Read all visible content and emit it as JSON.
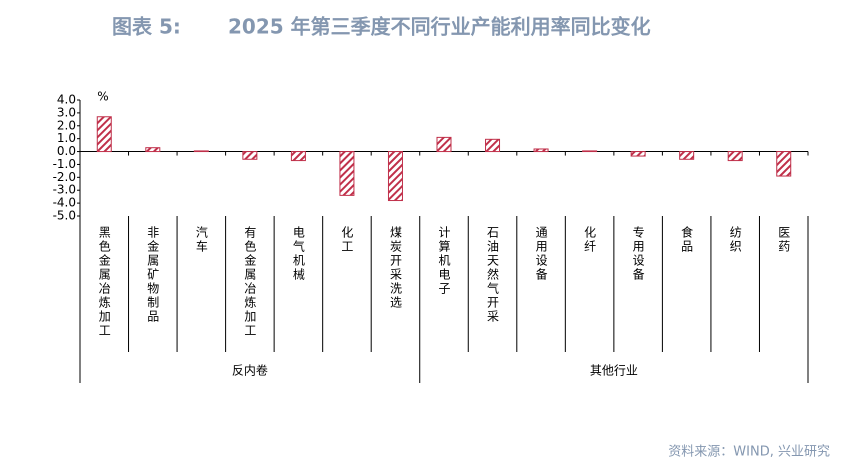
{
  "chart_data": {
    "type": "bar",
    "label": "图表 5:",
    "title": "2025 年第三季度不同行业产能利用率同比变化",
    "unit": "%",
    "source": "资料来源：WIND, 兴业研究",
    "color": "#c0304a",
    "groups": [
      {
        "name": "反内卷",
        "categories": [
          "黑色金属冶炼加工",
          "非金属矿物制品",
          "汽车",
          "有色金属冶炼加工",
          "电气机械",
          "化工",
          "煤炭开采洗选"
        ],
        "values": [
          2.7,
          0.3,
          0.05,
          -0.6,
          -0.7,
          -3.4,
          -3.8
        ]
      },
      {
        "name": "其他行业",
        "categories": [
          "计算机电子",
          "石油天然气开采",
          "通用设备",
          "化纤",
          "专用设备",
          "食品",
          "纺织",
          "医药"
        ],
        "values": [
          1.1,
          0.95,
          0.2,
          0.05,
          -0.35,
          -0.6,
          -0.7,
          -1.9
        ]
      }
    ],
    "ylim": [
      -5,
      4
    ],
    "yticks": [
      {
        "value": 4,
        "label": "4.0"
      },
      {
        "value": 3,
        "label": "3.0"
      },
      {
        "value": 2,
        "label": "2.0"
      },
      {
        "value": 1,
        "label": "1.0"
      },
      {
        "value": 0,
        "label": "0.0"
      },
      {
        "value": -1,
        "label": "-1.0"
      },
      {
        "value": -2,
        "label": "-2.0"
      },
      {
        "value": -3,
        "label": "-3.0"
      },
      {
        "value": -4,
        "label": "-4.0"
      },
      {
        "value": -5,
        "label": "-5.0"
      }
    ]
  }
}
